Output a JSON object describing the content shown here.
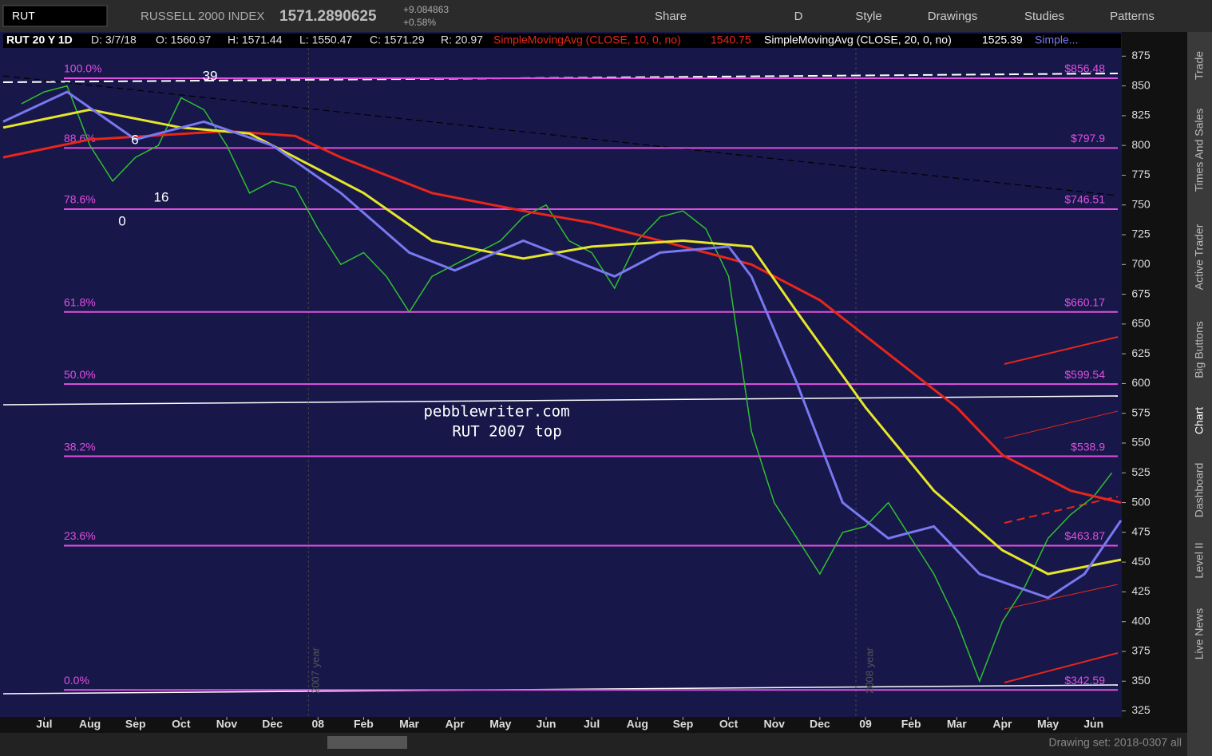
{
  "toolbar": {
    "symbol": "RUT",
    "name": "RUSSELL 2000 INDEX",
    "last": "1571.2890625",
    "change": "+9.084863",
    "change_pct": "+0.58%",
    "buttons": [
      "Share",
      "D",
      "Style",
      "Drawings",
      "Studies",
      "Patterns"
    ]
  },
  "header": {
    "study": "RUT 20 Y 1D",
    "date": "D: 3/7/18",
    "open": "O: 1560.97",
    "high": "H: 1571.44",
    "low": "L: 1550.47",
    "close": "C: 1571.29",
    "range": "R: 20.97",
    "sma10": "SimpleMovingAvg (CLOSE, 10, 0, no)",
    "sma10_value": "1540.75",
    "sma20": "SimpleMovingAvg (CLOSE, 20, 0, no)",
    "sma20_value": "1525.39",
    "more": "Simple..."
  },
  "side_tabs": [
    "Trade",
    "Times And Sales",
    "Active Trader",
    "Big Buttons",
    "Chart",
    "Dashboard",
    "Level II",
    "Live News"
  ],
  "footer": {
    "drawing_set": "Drawing set: 2018-0307 all"
  },
  "chart_data": {
    "type": "line",
    "annotations": [
      "pebblewriter.com",
      "RUT 2007 top",
      "39",
      "6",
      "16",
      "0",
      "2007 year",
      "2008 year"
    ],
    "xlim": [
      -0.9,
      23.6
    ],
    "xticks": [
      {
        "value": 0,
        "label": "Jul"
      },
      {
        "value": 1,
        "label": "Aug"
      },
      {
        "value": 2,
        "label": "Sep"
      },
      {
        "value": 3,
        "label": "Oct"
      },
      {
        "value": 4,
        "label": "Nov"
      },
      {
        "value": 5,
        "label": "Dec"
      },
      {
        "value": 6,
        "label": "08"
      },
      {
        "value": 7,
        "label": "Feb"
      },
      {
        "value": 8,
        "label": "Mar"
      },
      {
        "value": 9,
        "label": "Apr"
      },
      {
        "value": 10,
        "label": "May"
      },
      {
        "value": 11,
        "label": "Jun"
      },
      {
        "value": 12,
        "label": "Jul"
      },
      {
        "value": 13,
        "label": "Aug"
      },
      {
        "value": 14,
        "label": "Sep"
      },
      {
        "value": 15,
        "label": "Oct"
      },
      {
        "value": 16,
        "label": "Nov"
      },
      {
        "value": 17,
        "label": "Dec"
      },
      {
        "value": 18,
        "label": "09"
      },
      {
        "value": 19,
        "label": "Feb"
      },
      {
        "value": 20,
        "label": "Mar"
      },
      {
        "value": 21,
        "label": "Apr"
      },
      {
        "value": 22,
        "label": "May"
      },
      {
        "value": 23,
        "label": "Jun"
      }
    ],
    "ylim": [
      320,
      894
    ],
    "yticks": [
      325,
      350,
      375,
      400,
      425,
      450,
      475,
      500,
      525,
      550,
      575,
      600,
      625,
      650,
      675,
      700,
      725,
      750,
      775,
      800,
      825,
      850,
      875
    ],
    "levels": [
      {
        "value": 856.48,
        "label": "100.0%",
        "price_label": "$856.48"
      },
      {
        "value": 797.9,
        "label": "88.6%",
        "price_label": "$797.9"
      },
      {
        "value": 746.51,
        "label": "78.6%",
        "price_label": "$746.51"
      },
      {
        "value": 660.17,
        "label": "61.8%",
        "price_label": "$660.17"
      },
      {
        "value": 599.54,
        "label": "50.0%",
        "price_label": "$599.54"
      },
      {
        "value": 538.9,
        "label": "38.2%",
        "price_label": "$538.9"
      },
      {
        "value": 463.87,
        "label": "23.6%",
        "price_label": "$463.87"
      },
      {
        "value": 342.59,
        "label": "0.0%",
        "price_label": "$342.59"
      }
    ],
    "level_color": "#e050e0",
    "series": [
      {
        "color": "#2fc02f",
        "x": [
          -0.5,
          0,
          0.5,
          1,
          1.5,
          2,
          2.5,
          3,
          3.5,
          4,
          4.5,
          5,
          5.5,
          6,
          6.5,
          7,
          7.5,
          8,
          8.5,
          9,
          9.5,
          10,
          10.5,
          11,
          11.5,
          12,
          12.5,
          13,
          13.5,
          14,
          14.5,
          15,
          15.5,
          16,
          16.5,
          17,
          17.5,
          18,
          18.5,
          19,
          19.5,
          20,
          20.5,
          21,
          21.5,
          22,
          22.5,
          23,
          23.4
        ],
        "values": [
          835,
          845,
          850,
          800,
          770,
          790,
          800,
          840,
          830,
          800,
          760,
          770,
          765,
          730,
          700,
          710,
          690,
          660,
          690,
          700,
          710,
          720,
          740,
          750,
          720,
          710,
          680,
          720,
          740,
          745,
          730,
          690,
          560,
          500,
          470,
          440,
          475,
          480,
          500,
          470,
          440,
          400,
          350,
          400,
          430,
          470,
          490,
          505,
          525
        ]
      },
      {
        "color": "#e8261a",
        "x": [
          -0.9,
          1,
          4,
          5.5,
          6.5,
          8.5,
          10.5,
          12,
          14,
          15.5,
          17,
          18,
          20,
          21,
          22.5,
          23.6
        ],
        "values": [
          790,
          805,
          812,
          808,
          790,
          760,
          745,
          735,
          715,
          700,
          670,
          640,
          580,
          540,
          510,
          500
        ]
      },
      {
        "color": "#e6e62a",
        "x": [
          -0.9,
          1,
          3,
          4.5,
          5.5,
          7,
          8.5,
          10.5,
          12,
          14,
          15.5,
          16.5,
          18,
          19.5,
          21,
          22,
          23.6
        ],
        "values": [
          815,
          830,
          815,
          810,
          790,
          760,
          720,
          705,
          715,
          720,
          715,
          660,
          580,
          510,
          460,
          440,
          452
        ]
      },
      {
        "color": "#7878f0",
        "x": [
          -0.9,
          0.5,
          2,
          3.5,
          5,
          6.5,
          8,
          9,
          10.5,
          12.5,
          13.5,
          15,
          15.5,
          16.5,
          17.5,
          18.5,
          19.5,
          20.5,
          22,
          22.8,
          23.6
        ],
        "values": [
          820,
          845,
          805,
          820,
          800,
          760,
          710,
          695,
          720,
          690,
          710,
          715,
          690,
          600,
          500,
          470,
          480,
          440,
          420,
          440,
          485
        ]
      }
    ]
  }
}
